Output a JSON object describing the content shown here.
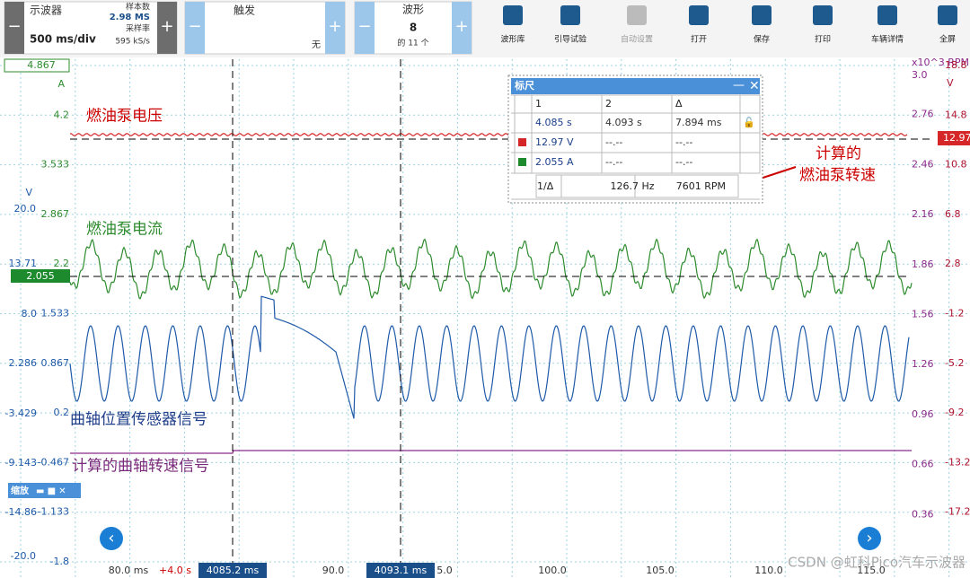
{
  "toolbar": {
    "scope": {
      "label": "示波器",
      "timebase": "500 ms/div",
      "samples_label": "样本数",
      "samples": "2.98 MS",
      "rate_label": "采样率",
      "rate": "595 kS/s"
    },
    "trigger": {
      "label": "触发",
      "mode": "无"
    },
    "waveform": {
      "label": "波形",
      "number": "8",
      "of": "的 11 个"
    },
    "buttons": [
      "波形库",
      "引导试验",
      "自动设置",
      "打开",
      "保存",
      "打印",
      "车辆详情",
      "全屏"
    ]
  },
  "axes": {
    "left_a": [
      "4.867",
      "4.2",
      "3.533",
      "2.867",
      "2.2",
      "1.533",
      "0.867",
      "0.2",
      "-0.467",
      "-1.133",
      "-1.8"
    ],
    "left_a_unit": "A",
    "left_v_unit": "V",
    "left_v": [
      "20.0",
      "13.71",
      "8.0",
      "2.286",
      "-3.429",
      "-9.143",
      "-14.86",
      "-20.0"
    ],
    "right_rpm": [
      "3.0",
      "2.76",
      "2.46",
      "2.16",
      "1.86",
      "1.56",
      "1.26",
      "0.96",
      "0.66",
      "0.36"
    ],
    "right_rpm_unit": "x10^3 RPM",
    "right_v": [
      "18.8",
      "14.8",
      "10.8",
      "6.8",
      "2.8",
      "-1.2",
      "-5.2",
      "-9.2",
      "-13.2",
      "-17.2"
    ],
    "right_v_unit": "V",
    "x": [
      "80.0 ms",
      "+4.0 s",
      "90.0",
      "5.0",
      "100.0",
      "105.0",
      "110.0",
      "115.0"
    ],
    "rulers": [
      "4085.2 ms",
      "4093.1 ms"
    ],
    "markers": {
      "current": "2.055",
      "voltage": "12.97",
      "top": "4.867"
    }
  },
  "annotations": {
    "pump_voltage": "燃油泵电压",
    "pump_current": "燃油泵电流",
    "crank_sensor": "曲轴位置传感器信号",
    "crank_speed": "计算的曲轴转速信号",
    "pump_speed": [
      "计算的",
      "燃油泵转速"
    ]
  },
  "ruler_panel": {
    "title": "标尺",
    "headers": [
      "1",
      "2",
      "Δ"
    ],
    "rows": [
      [
        "4.085 s",
        "4.093 s",
        "7.894 ms"
      ],
      [
        "12.97 V",
        "--.--",
        "--.--"
      ],
      [
        "2.055 A",
        "--.--",
        "--.--"
      ]
    ],
    "freq": [
      "1/Δ",
      "126.7 Hz",
      "7601 RPM"
    ]
  },
  "zoom": "缩放",
  "watermark": "CSDN @虹科Pico汽车示波器"
}
